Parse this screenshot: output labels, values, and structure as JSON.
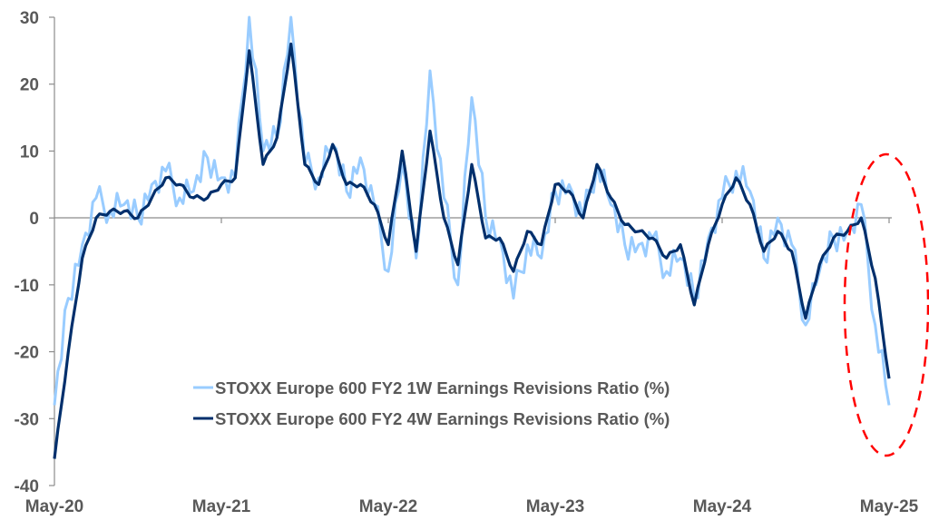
{
  "chart_data": {
    "type": "line",
    "title": "",
    "xlabel": "",
    "ylabel": "",
    "ylim": [
      -40,
      30
    ],
    "yticks": [
      30,
      20,
      10,
      0,
      -10,
      -20,
      -30,
      -40
    ],
    "ytick_labels": [
      "30",
      "20",
      "10",
      "0",
      "-10",
      "-20",
      "-30",
      "-40"
    ],
    "xtick_labels": [
      "May-20",
      "May-21",
      "May-22",
      "May-23",
      "May-24",
      "May-25"
    ],
    "x_unit": "months since May-20",
    "x": [
      0,
      1,
      2,
      3,
      4,
      5,
      6,
      7,
      8,
      9,
      10,
      11,
      12,
      13,
      14,
      15,
      16,
      17,
      18,
      19,
      20,
      21,
      22,
      23,
      24,
      25,
      26,
      27,
      28,
      29,
      30,
      31,
      32,
      33,
      34,
      35,
      36,
      37,
      38,
      39,
      40,
      41,
      42,
      43,
      44,
      45,
      46,
      47,
      48,
      49,
      50,
      51,
      52,
      53,
      54,
      55,
      56,
      57,
      58,
      59,
      60
    ],
    "legend_position": "bottom-center",
    "grid": false,
    "series": [
      {
        "name": "STOXX Europe 600 FY2 1W Earnings Revisions Ratio (%)",
        "color": "#99CCFF",
        "values": [
          -28,
          -12,
          -4,
          3,
          1,
          2,
          0,
          5,
          7,
          3,
          4,
          9,
          6,
          6,
          30,
          10,
          12,
          30,
          8,
          6,
          11,
          4,
          9,
          2,
          -8,
          8,
          -6,
          22,
          3,
          -10,
          18,
          0,
          -3,
          -12,
          -4,
          -6,
          4,
          5,
          0,
          8,
          2,
          -4,
          -4,
          -3,
          -8,
          -6,
          -12,
          -3,
          3,
          7,
          4,
          -6,
          0,
          -4,
          -16,
          -8,
          -3,
          -2,
          2,
          -16,
          -28
        ]
      },
      {
        "name": "STOXX Europe 600 FY2 4W Earnings Revisions Ratio (%)",
        "color": "#002F6C",
        "values": [
          -36,
          -20,
          -6,
          0,
          1,
          1,
          0,
          3,
          6,
          5,
          3,
          3,
          5,
          6,
          25,
          8,
          12,
          26,
          8,
          5,
          11,
          5,
          5,
          2,
          -4,
          10,
          -5,
          13,
          0,
          -7,
          8,
          -3,
          -3,
          -8,
          -2,
          -4,
          5,
          4,
          0,
          8,
          3,
          -1,
          -2,
          -3,
          -6,
          -4,
          -13,
          -4,
          2,
          6,
          2,
          -5,
          -2,
          -5,
          -15,
          -7,
          -3,
          -2,
          0,
          -9,
          -24
        ]
      }
    ],
    "annotation": "red dashed ellipse highlighting the most recent decline"
  }
}
